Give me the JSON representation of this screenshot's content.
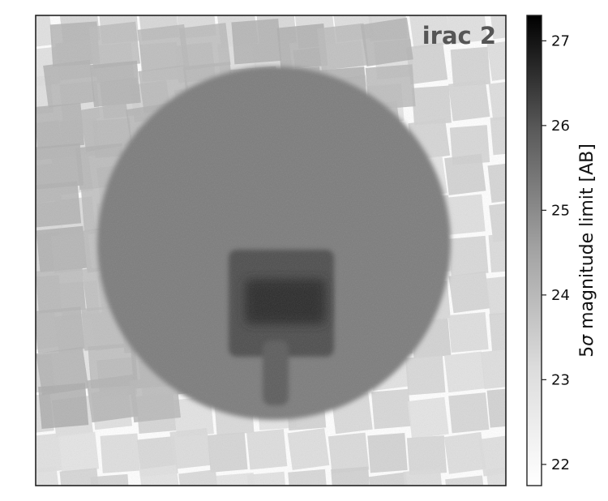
{
  "chart_data": {
    "type": "heatmap",
    "panel_label": "irac 2",
    "colorbar": {
      "label_prefix": "5",
      "label_sigma": "σ",
      "label_suffix": " magnitude limit [AB]",
      "ticks": [
        22,
        23,
        24,
        25,
        26,
        27
      ],
      "range": [
        21.75,
        27.3
      ],
      "colormap": "Greys"
    },
    "xlabel": "",
    "ylabel": "",
    "axes_ticks_visible": false,
    "regions": [
      {
        "name": "shallow outer mosaic",
        "depth": 22.6
      },
      {
        "name": "intermediate tiled coverage",
        "depth": 23.4
      },
      {
        "name": "wide circular deep field",
        "depth": 24.6
      },
      {
        "name": "deep central rectangle",
        "depth": 25.6
      },
      {
        "name": "deepest core",
        "depth": 26.4
      },
      {
        "name": "southward deep strip",
        "depth": 25.3
      }
    ]
  }
}
